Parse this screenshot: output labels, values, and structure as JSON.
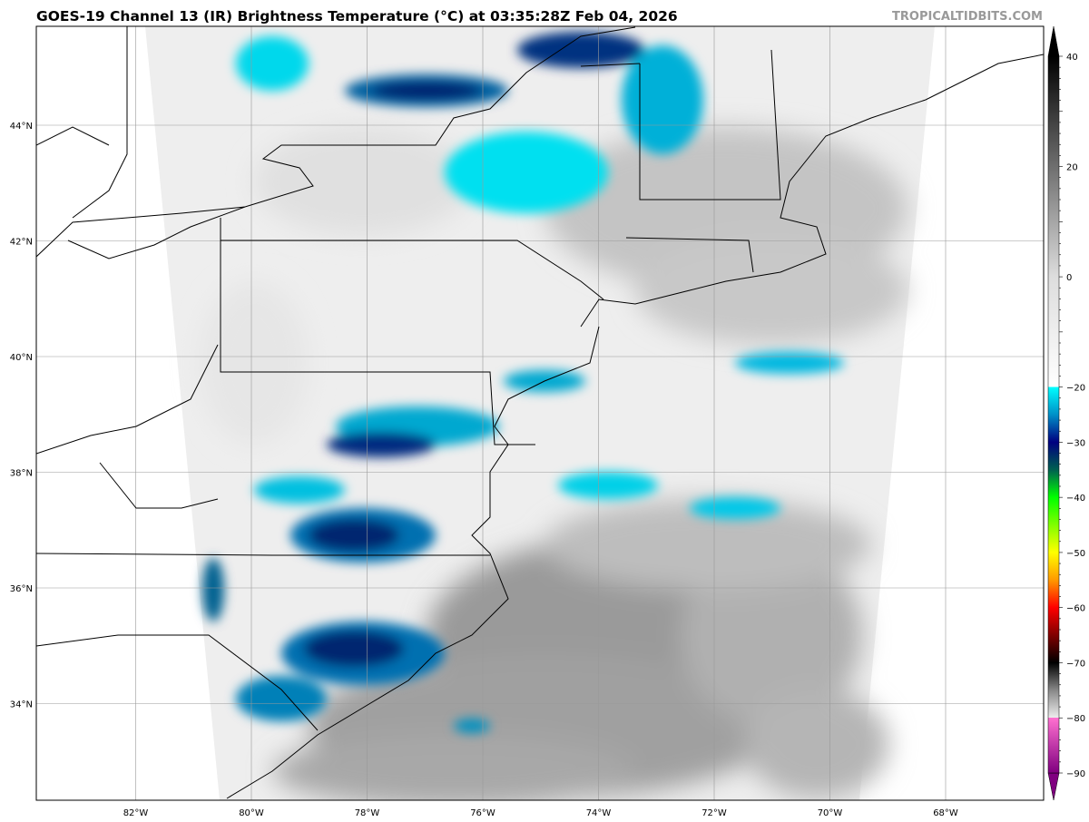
{
  "header": {
    "title": "GOES-19 Channel 13 (IR) Brightness Temperature (°C) at 03:35:28Z Feb 04, 2026",
    "credit": "TROPICALTIDBITS.COM"
  },
  "map": {
    "longitude_labels": [
      {
        "lon": -82,
        "label": "82°W"
      },
      {
        "lon": -80,
        "label": "80°W"
      },
      {
        "lon": -78,
        "label": "78°W"
      },
      {
        "lon": -76,
        "label": "76°W"
      },
      {
        "lon": -74,
        "label": "74°W"
      },
      {
        "lon": -72,
        "label": "72°W"
      },
      {
        "lon": -70,
        "label": "70°W"
      },
      {
        "lon": -68,
        "label": "68°W"
      }
    ],
    "latitude_labels": [
      {
        "lat": 44,
        "label": "44°N"
      },
      {
        "lat": 42,
        "label": "42°N"
      },
      {
        "lat": 40,
        "label": "40°N"
      },
      {
        "lat": 38,
        "label": "38°N"
      },
      {
        "lat": 36,
        "label": "36°N"
      },
      {
        "lat": 34,
        "label": "34°N"
      }
    ],
    "extent": {
      "lon": [
        -83.7,
        -66.3
      ],
      "lat": [
        32.3,
        45.7
      ]
    },
    "gridlines": true
  },
  "colorbar": {
    "range": [
      -90,
      40
    ],
    "ticks": [
      {
        "value": 40,
        "label": "40"
      },
      {
        "value": 20,
        "label": "20"
      },
      {
        "value": 0,
        "label": "0"
      },
      {
        "value": -20,
        "label": "−20"
      },
      {
        "value": -30,
        "label": "−30"
      },
      {
        "value": -40,
        "label": "−40"
      },
      {
        "value": -50,
        "label": "−50"
      },
      {
        "value": -60,
        "label": "−60"
      },
      {
        "value": -70,
        "label": "−70"
      },
      {
        "value": -80,
        "label": "−80"
      },
      {
        "value": -90,
        "label": "−90"
      }
    ],
    "stops": [
      {
        "value": 40,
        "color": "#000000"
      },
      {
        "value": 0,
        "color": "#dddddd"
      },
      {
        "value": -20,
        "color": "#ffffff"
      },
      {
        "value": -20,
        "color": "#00ffff"
      },
      {
        "value": -25,
        "color": "#0090c8"
      },
      {
        "value": -30,
        "color": "#000080"
      },
      {
        "value": -35,
        "color": "#006050"
      },
      {
        "value": -40,
        "color": "#00ff00"
      },
      {
        "value": -50,
        "color": "#ffff00"
      },
      {
        "value": -55,
        "color": "#ff9900"
      },
      {
        "value": -60,
        "color": "#ff0000"
      },
      {
        "value": -65,
        "color": "#800000"
      },
      {
        "value": -70,
        "color": "#000000"
      },
      {
        "value": -75,
        "color": "#888888"
      },
      {
        "value": -80,
        "color": "#eeeeee"
      },
      {
        "value": -80,
        "color": "#ff70d0"
      },
      {
        "value": -90,
        "color": "#800080"
      }
    ]
  }
}
